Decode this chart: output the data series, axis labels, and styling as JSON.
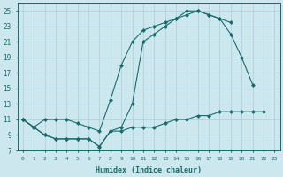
{
  "xlabel": "Humidex (Indice chaleur)",
  "bg_color": "#cce8ee",
  "grid_color": "#aacdd6",
  "line_color": "#1a6b6b",
  "xlim": [
    -0.5,
    23.5
  ],
  "ylim": [
    7,
    26
  ],
  "xticks": [
    0,
    1,
    2,
    3,
    4,
    5,
    6,
    7,
    8,
    9,
    10,
    11,
    12,
    13,
    14,
    15,
    16,
    17,
    18,
    19,
    20,
    21,
    22,
    23
  ],
  "yticks": [
    7,
    9,
    11,
    13,
    15,
    17,
    19,
    21,
    23,
    25
  ],
  "top_x": [
    0,
    1,
    2,
    3,
    4,
    5,
    6,
    7,
    8,
    9,
    10,
    11,
    12,
    13,
    14,
    15,
    16,
    17,
    18,
    19
  ],
  "top_y": [
    11,
    10,
    11,
    11,
    11,
    10.5,
    10,
    9.5,
    13.5,
    18,
    21,
    22.5,
    23,
    23.5,
    24,
    25,
    25,
    24.5,
    24,
    23.5
  ],
  "mid_x": [
    0,
    1,
    2,
    3,
    4,
    5,
    6,
    7,
    8,
    9,
    10,
    11,
    12,
    13,
    14,
    15,
    16,
    17,
    18,
    19,
    20,
    21
  ],
  "mid_y": [
    11,
    10,
    9,
    8.5,
    8.5,
    8.5,
    8.5,
    7.5,
    9.5,
    10,
    13,
    21,
    22,
    23,
    24,
    24.5,
    25,
    24.5,
    24,
    22,
    19,
    15.5
  ],
  "bot_x": [
    0,
    1,
    2,
    3,
    4,
    5,
    6,
    7,
    8,
    9,
    10,
    11,
    12,
    13,
    14,
    15,
    16,
    17,
    18,
    19,
    20,
    21,
    22
  ],
  "bot_y": [
    11,
    10,
    9,
    8.5,
    8.5,
    8.5,
    8.5,
    7.5,
    9.5,
    9.5,
    10,
    10,
    10,
    10.5,
    11,
    11,
    11.5,
    11.5,
    12,
    12,
    12,
    12,
    12
  ]
}
